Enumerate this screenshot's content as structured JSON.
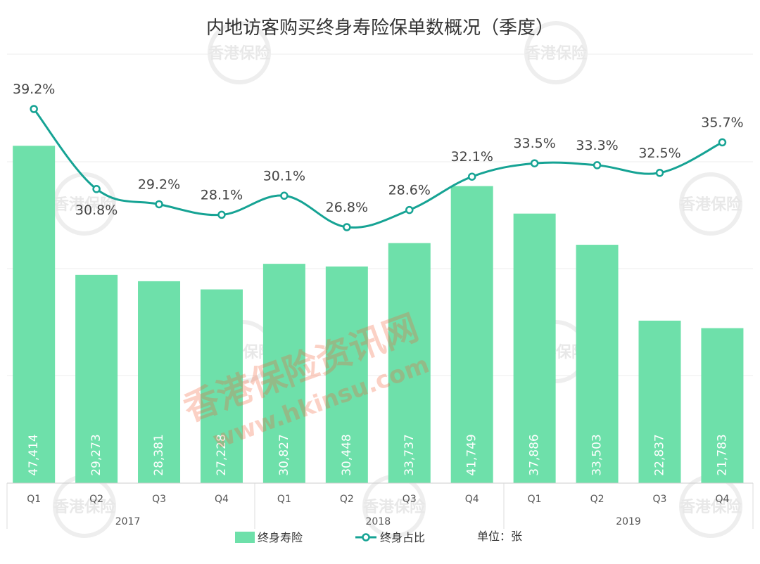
{
  "chart_data": {
    "type": "bar",
    "title": "内地访客购买终身寿险保单数概况（季度）",
    "categories": [
      "Q1",
      "Q2",
      "Q3",
      "Q4",
      "Q1",
      "Q2",
      "Q3",
      "Q4",
      "Q1",
      "Q2",
      "Q3",
      "Q4"
    ],
    "years": [
      {
        "label": "2017",
        "span": [
          0,
          3
        ]
      },
      {
        "label": "2018",
        "span": [
          4,
          7
        ]
      },
      {
        "label": "2019",
        "span": [
          8,
          11
        ]
      }
    ],
    "series": [
      {
        "name": "终身寿险",
        "type": "bar",
        "color": "#6ee0aa",
        "values": [
          47414,
          29273,
          28381,
          27228,
          30827,
          30448,
          33737,
          41749,
          37886,
          33503,
          22837,
          21783
        ],
        "labels": [
          "47,414",
          "29,273",
          "28,381",
          "27,228",
          "30,827",
          "30,448",
          "33,737",
          "41,749",
          "37,886",
          "33,503",
          "22,837",
          "21,783"
        ]
      },
      {
        "name": "终身占比",
        "type": "line",
        "color": "#16a394",
        "values": [
          39.2,
          30.8,
          29.2,
          28.1,
          30.1,
          26.8,
          28.6,
          32.1,
          33.5,
          33.3,
          32.5,
          35.7
        ],
        "labels": [
          "39.2%",
          "30.8%",
          "29.2%",
          "28.1%",
          "30.1%",
          "26.8%",
          "28.6%",
          "32.1%",
          "33.5%",
          "33.3%",
          "32.5%",
          "35.7%"
        ]
      }
    ],
    "ylim_bars": [
      0,
      60000
    ],
    "ylim_line": [
      0,
      45
    ],
    "grid": true,
    "legend_position": "bottom-center",
    "unit_label": "单位：张"
  },
  "watermark": {
    "main": "香港保险资讯网",
    "url": "www.hkinsu.com",
    "badge": "香港保险"
  }
}
